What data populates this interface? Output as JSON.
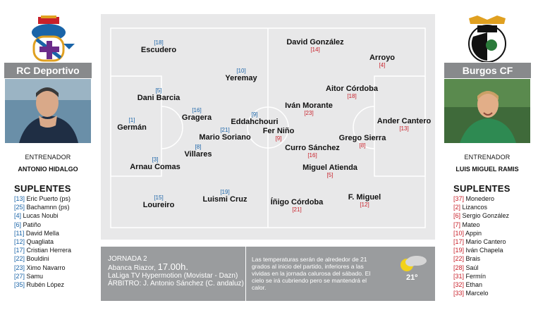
{
  "home": {
    "name": "RC Deportivo",
    "coach_role": "ENTRENADOR",
    "coach_name": "ANTONIO HIDALGO",
    "subs_title": "SUPLENTES",
    "subs": [
      {
        "num": "[13]",
        "name": "Eric Puerto (ps)"
      },
      {
        "num": "[25]",
        "name": "Bachamnn (ps)"
      },
      {
        "num": "[4]",
        "name": "Lucas Noubi"
      },
      {
        "num": "[6]",
        "name": "Patiño"
      },
      {
        "num": "[11]",
        "name": "David Mella"
      },
      {
        "num": "[12]",
        "name": "Quagliata"
      },
      {
        "num": "[17]",
        "name": "Cristian Herrera"
      },
      {
        "num": "[22]",
        "name": "Bouldini"
      },
      {
        "num": "[23]",
        "name": "Ximo Navarro"
      },
      {
        "num": "[27]",
        "name": "Samu"
      },
      {
        "num": "[35]",
        "name": "Rubén López"
      }
    ],
    "color": "#1a64a8"
  },
  "away": {
    "name": "Burgos CF",
    "coach_role": "ENTRENADOR",
    "coach_name": "LUIS MIGUEL RAMIS",
    "subs_title": "SUPLENTES",
    "subs": [
      {
        "num": "[37]",
        "name": "Monedero"
      },
      {
        "num": "[2]",
        "name": "Lizancos"
      },
      {
        "num": "[6]",
        "name": "Sergio González"
      },
      {
        "num": "[7]",
        "name": "Mateo"
      },
      {
        "num": "[10]",
        "name": "Appin"
      },
      {
        "num": "[17]",
        "name": "Mario Cantero"
      },
      {
        "num": "[19]",
        "name": "Iván Chapela"
      },
      {
        "num": "[22]",
        "name": "Brais"
      },
      {
        "num": "[28]",
        "name": "Saúl"
      },
      {
        "num": "[31]",
        "name": "Fermín"
      },
      {
        "num": "[32]",
        "name": "Ethan"
      },
      {
        "num": "[33]",
        "name": "Marcelo"
      }
    ],
    "color": "#c8202a"
  },
  "pitch": {
    "home_players": [
      {
        "num": "[18]",
        "name": "Escudero"
      },
      {
        "num": "[10]",
        "name": "Yeremay"
      },
      {
        "num": "[5]",
        "name": "Dani Barcia"
      },
      {
        "num": "[16]",
        "name": "Gragera"
      },
      {
        "num": "[1]",
        "name": "Germán"
      },
      {
        "num": "[9]",
        "name": "Eddahchouri"
      },
      {
        "num": "[21]",
        "name": "Mario Soriano"
      },
      {
        "num": "[8]",
        "name": "Villares"
      },
      {
        "num": "[3]",
        "name": "Arnau Comas"
      },
      {
        "num": "[15]",
        "name": "Loureiro"
      },
      {
        "num": "[19]",
        "name": "Luismi Cruz"
      }
    ],
    "away_players": [
      {
        "num": "[14]",
        "name": "David González"
      },
      {
        "num": "[4]",
        "name": "Arroyo"
      },
      {
        "num": "[18]",
        "name": "Aitor Córdoba"
      },
      {
        "num": "[23]",
        "name": "Iván Morante"
      },
      {
        "num": "[13]",
        "name": "Ander Cantero"
      },
      {
        "num": "[9]",
        "name": "Fer Niño"
      },
      {
        "num": "[8]",
        "name": "Grego Sierra"
      },
      {
        "num": "[16]",
        "name": "Curro Sánchez"
      },
      {
        "num": "[5]",
        "name": "Miguel Atienda"
      },
      {
        "num": "[21]",
        "name": "Íñigo Córdoba"
      },
      {
        "num": "[12]",
        "name": "F. Miguel"
      }
    ]
  },
  "info": {
    "round": "JORNADA 2",
    "venue": "Abanca Riazor,",
    "kickoff": "17.00h.",
    "tv": "LaLiga TV Hypermotion (Movistar - Dazn)",
    "referee": "ÁRBITRO: J. Antonio Sánchez (C. andaluz)",
    "weather_text": "Las temperaturas serán de alrededor de 21 grados al inicio del partido, inferiores a las vividas en la jornada calurosa del sábado. El cielo se irá cubriendo pero se mantendrá el calor.",
    "temperature": "21º",
    "weather_icon": "partly-cloudy-icon"
  }
}
